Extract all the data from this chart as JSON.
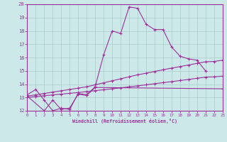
{
  "xlabel": "Windchill (Refroidissement éolien,°C)",
  "background_color": "#cce8e8",
  "line_color": "#993399",
  "xlim": [
    0,
    23
  ],
  "ylim": [
    12,
    20
  ],
  "xticks": [
    0,
    1,
    2,
    3,
    4,
    5,
    6,
    7,
    8,
    9,
    10,
    11,
    12,
    13,
    14,
    15,
    16,
    17,
    18,
    19,
    20,
    21,
    22,
    23
  ],
  "yticks": [
    12,
    13,
    14,
    15,
    16,
    17,
    18,
    19,
    20
  ],
  "grid_color": "#aacccc",
  "curve_main_x": [
    0,
    1,
    2,
    3,
    4,
    5,
    6,
    7,
    8,
    9,
    10,
    11,
    12,
    13,
    14,
    15,
    16,
    17,
    18,
    19,
    20,
    21
  ],
  "curve_main_y": [
    13.2,
    13.6,
    12.8,
    12.0,
    12.2,
    12.1,
    13.3,
    13.2,
    13.8,
    16.2,
    18.0,
    17.8,
    19.8,
    19.7,
    18.5,
    18.1,
    18.1,
    16.8,
    16.1,
    15.9,
    15.8,
    15.0
  ],
  "curve_upper_x": [
    0,
    1,
    2,
    3,
    4,
    5,
    6,
    7,
    8,
    9,
    10,
    11,
    12,
    13,
    14,
    15,
    16,
    17,
    18,
    19,
    20,
    21,
    22,
    23
  ],
  "curve_upper_y": [
    13.1,
    13.2,
    13.3,
    13.4,
    13.5,
    13.6,
    13.7,
    13.8,
    13.95,
    14.1,
    14.25,
    14.4,
    14.55,
    14.7,
    14.82,
    14.95,
    15.08,
    15.2,
    15.32,
    15.44,
    15.56,
    15.68,
    15.7,
    15.8
  ],
  "curve_lower_x": [
    0,
    1,
    2,
    3,
    4,
    5,
    6,
    7,
    8,
    9,
    10,
    11,
    12,
    13,
    14,
    15,
    16,
    17,
    18,
    19,
    20,
    21,
    22,
    23
  ],
  "curve_lower_y": [
    13.0,
    13.07,
    13.13,
    13.19,
    13.25,
    13.31,
    13.37,
    13.44,
    13.51,
    13.58,
    13.65,
    13.72,
    13.8,
    13.87,
    13.95,
    14.03,
    14.11,
    14.19,
    14.27,
    14.35,
    14.44,
    14.53,
    14.55,
    14.6
  ],
  "curve_zigzag_x": [
    0,
    2,
    3,
    4,
    5,
    6,
    7,
    8,
    23
  ],
  "curve_zigzag_y": [
    13.1,
    12.0,
    12.8,
    12.1,
    12.2,
    13.25,
    13.15,
    13.75,
    13.65
  ]
}
